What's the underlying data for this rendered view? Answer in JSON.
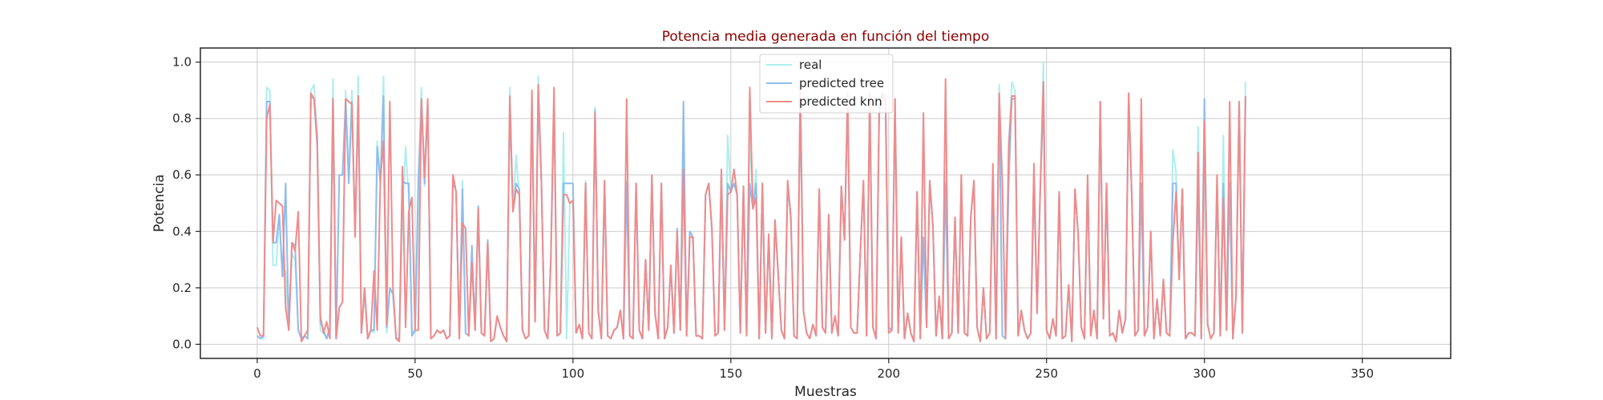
{
  "chart_data": {
    "type": "line",
    "title": "Potencia media generada en función del tiempo",
    "xlabel": "Muestras",
    "ylabel": "Potencia",
    "xlim": [
      -18,
      378
    ],
    "ylim": [
      -0.05,
      1.05
    ],
    "xticks": [
      0,
      50,
      100,
      150,
      200,
      250,
      300,
      350
    ],
    "yticks": [
      0.0,
      0.2,
      0.4,
      0.6,
      0.8,
      1.0
    ],
    "grid": true,
    "legend_position": "top-center",
    "series": [
      {
        "name": "real",
        "color": "#aeeeee",
        "values": [
          0.03,
          0.02,
          0.02,
          0.91,
          0.9,
          0.28,
          0.28,
          0.45,
          0.24,
          0.26,
          0.05,
          0.32,
          0.3,
          0.05,
          0.02,
          0.03,
          0.02,
          0.9,
          0.92,
          0.74,
          0.05,
          0.04,
          0.02,
          0.06,
          0.94,
          0.02,
          0.13,
          0.15,
          0.9,
          0.59,
          0.9,
          0.38,
          0.95,
          0.04,
          0.18,
          0.02,
          0.05,
          0.04,
          0.72,
          0.58,
          0.95,
          0.04,
          0.19,
          0.18,
          0.02,
          0.01,
          0.45,
          0.7,
          0.52,
          0.05,
          0.04,
          0.4,
          0.91,
          0.56,
          0.86,
          0.02,
          0.03,
          0.05,
          0.04,
          0.05,
          0.02,
          0.03,
          0.59,
          0.54,
          0.02,
          0.58,
          0.04,
          0.03,
          0.29,
          0.05,
          0.48,
          0.04,
          0.03,
          0.36,
          0.01,
          0.02,
          0.1,
          0.06,
          0.03,
          0.01,
          0.91,
          0.47,
          0.67,
          0.53,
          0.05,
          0.02,
          0.03,
          0.88,
          0.08,
          0.95,
          0.58,
          0.05,
          0.02,
          0.3,
          0.9,
          0.03,
          0.04,
          0.75,
          0.02,
          0.5,
          0.51,
          0.04,
          0.07,
          0.02,
          0.58,
          0.04,
          0.02,
          0.84,
          0.12,
          0.02,
          0.58,
          0.03,
          0.02,
          0.05,
          0.06,
          0.12,
          0.02,
          0.58,
          0.03,
          0.02,
          0.57,
          0.05,
          0.02,
          0.3,
          0.05,
          0.6,
          0.11,
          0.02,
          0.57,
          0.02,
          0.06,
          0.28,
          0.04,
          0.4,
          0.05,
          0.66,
          0.03,
          0.38,
          0.38,
          0.03,
          0.03,
          0.02,
          0.53,
          0.57,
          0.41,
          0.03,
          0.04,
          0.62,
          0.05,
          0.74,
          0.54,
          0.62,
          0.53,
          0.04,
          0.56,
          0.03,
          0.75,
          0.48,
          0.62,
          0.02,
          0.57,
          0.04,
          0.39,
          0.02,
          0.44,
          0.25,
          0.05,
          0.02,
          0.58,
          0.45,
          0.03,
          0.02,
          0.91,
          0.12,
          0.04,
          0.02,
          0.07,
          0.03,
          0.55,
          0.06,
          0.04,
          0.46,
          0.04,
          0.1,
          0.03,
          0.56,
          0.37,
          0.89,
          0.06,
          0.04,
          0.04,
          0.32,
          0.58,
          0.03,
          0.87,
          0.06,
          0.02,
          0.85,
          0.89,
          0.88,
          0.04,
          0.05,
          0.87,
          0.04,
          0.38,
          0.02,
          0.11,
          0.04,
          0.01,
          0.54,
          0.02,
          0.38,
          0.06,
          0.58,
          0.42,
          0.03,
          0.17,
          0.02,
          0.61,
          0.02,
          0.04,
          0.45,
          0.04,
          0.6,
          0.04,
          0.03,
          0.45,
          0.58,
          0.06,
          0.01,
          0.2,
          0.02,
          0.04,
          0.6,
          0.02,
          0.92,
          0.03,
          0.02,
          0.7,
          0.93,
          0.9,
          0.03,
          0.12,
          0.05,
          0.02,
          0.04,
          0.64,
          0.11,
          0.55,
          1.0,
          0.05,
          0.02,
          0.09,
          0.03,
          0.54,
          0.02,
          0.03,
          0.21,
          0.01,
          0.55,
          0.39,
          0.06,
          0.02,
          0.6,
          0.03,
          0.12,
          0.02,
          0.86,
          0.09,
          0.57,
          0.03,
          0.04,
          0.01,
          0.12,
          0.04,
          0.09,
          0.89,
          0.52,
          0.03,
          0.05,
          0.57,
          0.03,
          0.06,
          0.4,
          0.02,
          0.16,
          0.03,
          0.23,
          0.04,
          0.03,
          0.69,
          0.61,
          0.23,
          0.55,
          0.02,
          0.04,
          0.04,
          0.03,
          0.77,
          0.02,
          0.87,
          0.07,
          0.02,
          0.04,
          0.6,
          0.03,
          0.74,
          0.05,
          0.58,
          0.02,
          0.17,
          0.86,
          0.04,
          0.93
        ]
      },
      {
        "name": "predicted tree",
        "color": "#8fbcee",
        "values": [
          0.03,
          0.02,
          0.03,
          0.86,
          0.86,
          0.36,
          0.36,
          0.46,
          0.24,
          0.57,
          0.05,
          0.36,
          0.35,
          0.05,
          0.02,
          0.03,
          0.02,
          0.88,
          0.87,
          0.7,
          0.08,
          0.05,
          0.02,
          0.06,
          0.86,
          0.02,
          0.6,
          0.6,
          0.86,
          0.57,
          0.86,
          0.4,
          0.86,
          0.04,
          0.2,
          0.02,
          0.05,
          0.05,
          0.7,
          0.57,
          0.88,
          0.06,
          0.2,
          0.18,
          0.02,
          0.02,
          0.58,
          0.57,
          0.57,
          0.03,
          0.05,
          0.57,
          0.87,
          0.57,
          0.85,
          0.02,
          0.03,
          0.05,
          0.04,
          0.05,
          0.02,
          0.03,
          0.58,
          0.54,
          0.02,
          0.55,
          0.04,
          0.03,
          0.35,
          0.05,
          0.49,
          0.04,
          0.03,
          0.37,
          0.01,
          0.02,
          0.1,
          0.06,
          0.03,
          0.01,
          0.86,
          0.47,
          0.57,
          0.55,
          0.05,
          0.02,
          0.03,
          0.87,
          0.08,
          0.88,
          0.58,
          0.05,
          0.02,
          0.3,
          0.86,
          0.03,
          0.04,
          0.57,
          0.57,
          0.57,
          0.57,
          0.04,
          0.07,
          0.02,
          0.57,
          0.04,
          0.02,
          0.83,
          0.12,
          0.02,
          0.57,
          0.03,
          0.02,
          0.05,
          0.06,
          0.12,
          0.02,
          0.57,
          0.03,
          0.02,
          0.57,
          0.05,
          0.02,
          0.3,
          0.05,
          0.6,
          0.11,
          0.02,
          0.57,
          0.02,
          0.06,
          0.28,
          0.04,
          0.41,
          0.05,
          0.86,
          0.03,
          0.4,
          0.38,
          0.03,
          0.03,
          0.02,
          0.53,
          0.57,
          0.41,
          0.03,
          0.04,
          0.57,
          0.05,
          0.57,
          0.54,
          0.57,
          0.53,
          0.04,
          0.56,
          0.03,
          0.57,
          0.48,
          0.57,
          0.02,
          0.57,
          0.04,
          0.39,
          0.02,
          0.44,
          0.25,
          0.05,
          0.02,
          0.57,
          0.45,
          0.03,
          0.02,
          0.87,
          0.12,
          0.04,
          0.02,
          0.07,
          0.03,
          0.55,
          0.06,
          0.04,
          0.46,
          0.04,
          0.1,
          0.03,
          0.56,
          0.37,
          0.87,
          0.06,
          0.04,
          0.04,
          0.32,
          0.57,
          0.03,
          0.86,
          0.06,
          0.02,
          0.85,
          0.87,
          0.87,
          0.06,
          0.05,
          0.86,
          0.04,
          0.38,
          0.02,
          0.11,
          0.04,
          0.01,
          0.54,
          0.02,
          0.38,
          0.06,
          0.57,
          0.42,
          0.03,
          0.17,
          0.02,
          0.57,
          0.02,
          0.04,
          0.45,
          0.04,
          0.57,
          0.04,
          0.03,
          0.45,
          0.57,
          0.06,
          0.01,
          0.2,
          0.02,
          0.04,
          0.57,
          0.02,
          0.87,
          0.03,
          0.02,
          0.57,
          0.87,
          0.87,
          0.03,
          0.12,
          0.05,
          0.02,
          0.04,
          0.57,
          0.11,
          0.55,
          0.87,
          0.05,
          0.02,
          0.09,
          0.03,
          0.54,
          0.02,
          0.03,
          0.21,
          0.01,
          0.55,
          0.39,
          0.06,
          0.02,
          0.57,
          0.03,
          0.12,
          0.02,
          0.86,
          0.09,
          0.57,
          0.03,
          0.04,
          0.01,
          0.12,
          0.04,
          0.09,
          0.87,
          0.52,
          0.03,
          0.05,
          0.57,
          0.03,
          0.06,
          0.4,
          0.02,
          0.16,
          0.03,
          0.23,
          0.04,
          0.03,
          0.57,
          0.57,
          0.23,
          0.55,
          0.02,
          0.04,
          0.04,
          0.03,
          0.57,
          0.02,
          0.87,
          0.07,
          0.02,
          0.04,
          0.57,
          0.03,
          0.57,
          0.05,
          0.57,
          0.02,
          0.17,
          0.86,
          0.04,
          0.87
        ]
      },
      {
        "name": "predicted knn",
        "color": "#f08b8b",
        "values": [
          0.06,
          0.03,
          0.03,
          0.8,
          0.85,
          0.36,
          0.51,
          0.5,
          0.49,
          0.13,
          0.05,
          0.36,
          0.33,
          0.47,
          0.01,
          0.03,
          0.05,
          0.89,
          0.87,
          0.73,
          0.1,
          0.04,
          0.08,
          0.02,
          0.87,
          0.02,
          0.13,
          0.15,
          0.87,
          0.86,
          0.85,
          0.38,
          0.88,
          0.04,
          0.2,
          0.02,
          0.05,
          0.26,
          0.05,
          0.58,
          0.72,
          0.07,
          0.86,
          0.2,
          0.02,
          0.01,
          0.63,
          0.06,
          0.47,
          0.52,
          0.05,
          0.05,
          0.87,
          0.59,
          0.87,
          0.02,
          0.03,
          0.05,
          0.04,
          0.05,
          0.02,
          0.03,
          0.6,
          0.54,
          0.02,
          0.43,
          0.41,
          0.03,
          0.29,
          0.05,
          0.48,
          0.04,
          0.03,
          0.36,
          0.01,
          0.02,
          0.1,
          0.06,
          0.03,
          0.01,
          0.88,
          0.47,
          0.55,
          0.53,
          0.05,
          0.02,
          0.03,
          0.9,
          0.08,
          0.92,
          0.58,
          0.05,
          0.02,
          0.3,
          0.91,
          0.03,
          0.04,
          0.53,
          0.53,
          0.5,
          0.51,
          0.04,
          0.07,
          0.02,
          0.57,
          0.04,
          0.02,
          0.82,
          0.12,
          0.02,
          0.58,
          0.03,
          0.02,
          0.05,
          0.06,
          0.12,
          0.02,
          0.87,
          0.03,
          0.02,
          0.57,
          0.05,
          0.02,
          0.3,
          0.05,
          0.6,
          0.11,
          0.02,
          0.57,
          0.02,
          0.06,
          0.28,
          0.04,
          0.4,
          0.05,
          0.62,
          0.03,
          0.38,
          0.38,
          0.03,
          0.03,
          0.02,
          0.53,
          0.57,
          0.41,
          0.03,
          0.04,
          0.62,
          0.05,
          0.53,
          0.54,
          0.62,
          0.53,
          0.04,
          0.56,
          0.03,
          0.91,
          0.48,
          0.52,
          0.02,
          0.57,
          0.04,
          0.39,
          0.02,
          0.44,
          0.25,
          0.05,
          0.02,
          0.58,
          0.45,
          0.03,
          0.02,
          0.91,
          0.12,
          0.04,
          0.02,
          0.07,
          0.03,
          0.55,
          0.06,
          0.04,
          0.46,
          0.04,
          0.1,
          0.03,
          0.56,
          0.37,
          0.89,
          0.06,
          0.04,
          0.04,
          0.32,
          0.58,
          0.03,
          0.89,
          0.06,
          0.02,
          0.82,
          0.89,
          0.85,
          0.04,
          0.05,
          0.87,
          0.04,
          0.38,
          0.02,
          0.11,
          0.04,
          0.01,
          0.54,
          0.02,
          0.82,
          0.06,
          0.58,
          0.42,
          0.03,
          0.17,
          0.02,
          0.94,
          0.02,
          0.04,
          0.45,
          0.04,
          0.6,
          0.04,
          0.03,
          0.45,
          0.58,
          0.06,
          0.01,
          0.2,
          0.02,
          0.04,
          0.64,
          0.02,
          0.89,
          0.57,
          0.02,
          0.7,
          0.88,
          0.88,
          0.03,
          0.12,
          0.05,
          0.02,
          0.04,
          0.64,
          0.11,
          0.55,
          0.93,
          0.05,
          0.02,
          0.09,
          0.03,
          0.54,
          0.02,
          0.03,
          0.21,
          0.01,
          0.55,
          0.39,
          0.06,
          0.02,
          0.6,
          0.03,
          0.12,
          0.02,
          0.86,
          0.09,
          0.57,
          0.03,
          0.04,
          0.01,
          0.12,
          0.04,
          0.09,
          0.89,
          0.52,
          0.03,
          0.05,
          0.87,
          0.03,
          0.06,
          0.4,
          0.02,
          0.16,
          0.03,
          0.23,
          0.04,
          0.03,
          0.36,
          0.54,
          0.23,
          0.55,
          0.02,
          0.04,
          0.04,
          0.03,
          0.68,
          0.02,
          0.79,
          0.07,
          0.02,
          0.04,
          0.6,
          0.03,
          0.52,
          0.05,
          0.86,
          0.02,
          0.17,
          0.86,
          0.04,
          0.88
        ]
      }
    ]
  }
}
